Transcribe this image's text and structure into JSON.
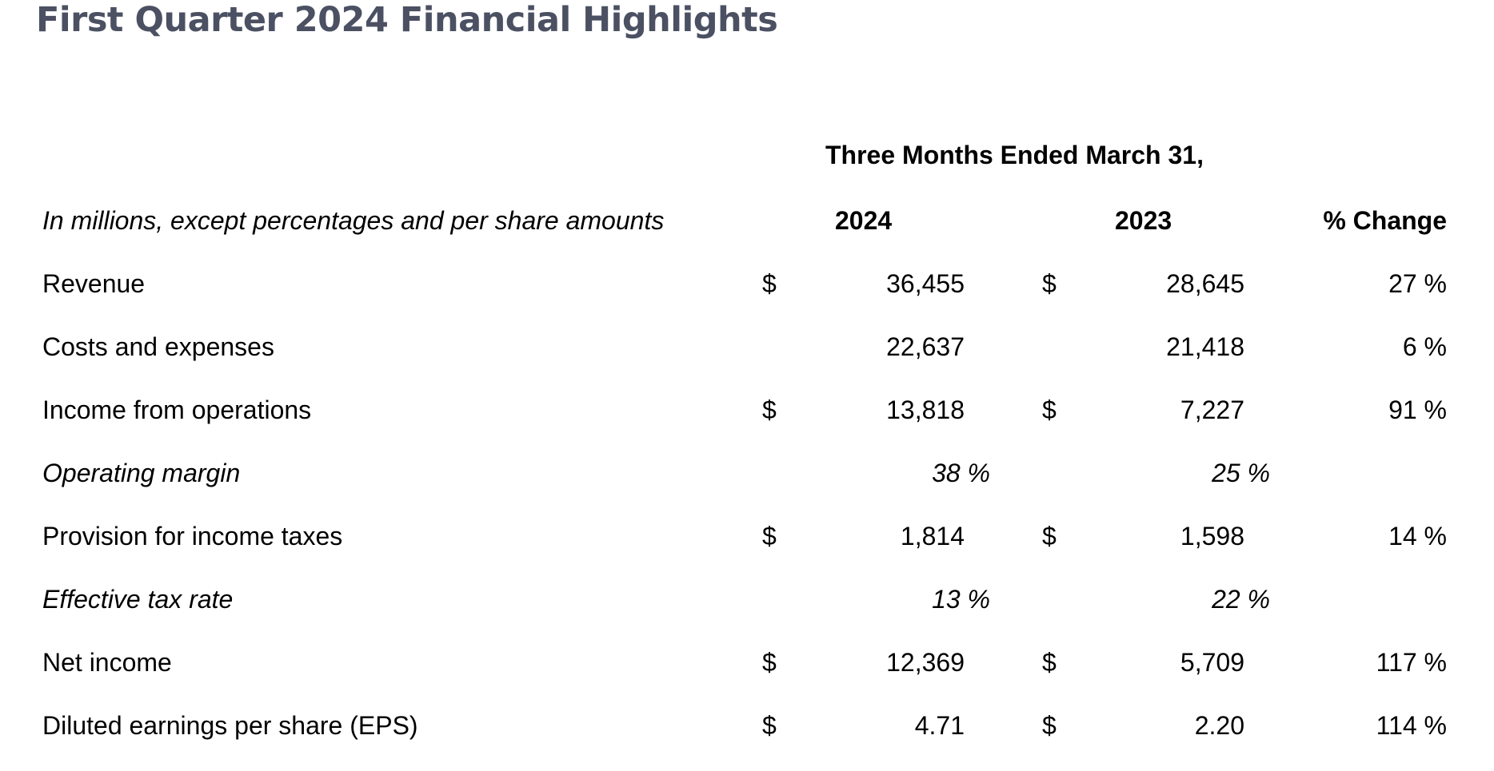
{
  "title": "First Quarter 2024 Financial Highlights",
  "period_header": "Three Months Ended March 31,",
  "table": {
    "units_note": "In millions, except percentages and per share amounts",
    "columns": [
      "2024",
      "2023",
      "% Change"
    ],
    "rows": [
      {
        "label": "Revenue",
        "cur_2024": "$",
        "v2024": "36,455",
        "cur_2023": "$",
        "v2023": "28,645",
        "change": "27 %"
      },
      {
        "label": "Costs and expenses",
        "cur_2024": "",
        "v2024": "22,637",
        "cur_2023": "",
        "v2023": "21,418",
        "change": "6 %"
      },
      {
        "label": "Income from operations",
        "cur_2024": "$",
        "v2024": "13,818",
        "cur_2023": "$",
        "v2023": "7,227",
        "change": "91 %"
      },
      {
        "label": "Operating margin",
        "cur_2024": "",
        "v2024": "38 %",
        "cur_2023": "",
        "v2023": "25 %",
        "change": ""
      },
      {
        "label": "Provision for income taxes",
        "cur_2024": "$",
        "v2024": "1,814",
        "cur_2023": "$",
        "v2023": "1,598",
        "change": "14 %"
      },
      {
        "label": "Effective tax rate",
        "cur_2024": "",
        "v2024": "13 %",
        "cur_2023": "",
        "v2023": "22 %",
        "change": ""
      },
      {
        "label": "Net income",
        "cur_2024": "$",
        "v2024": "12,369",
        "cur_2023": "$",
        "v2023": "5,709",
        "change": "117 %"
      },
      {
        "label": "Diluted earnings per share (EPS)",
        "cur_2024": "$",
        "v2024": "4.71",
        "cur_2023": "$",
        "v2023": "2.20",
        "change": "114 %"
      }
    ]
  }
}
